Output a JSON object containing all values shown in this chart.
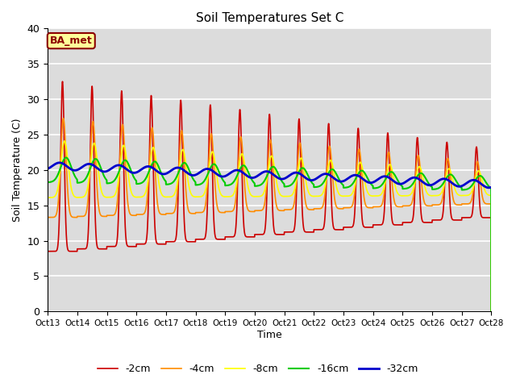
{
  "title": "Soil Temperatures Set C",
  "xlabel": "Time",
  "ylabel": "Soil Temperature (C)",
  "ylim": [
    0,
    40
  ],
  "background_color": "#dcdcdc",
  "figure_color": "#ffffff",
  "annotation_text": "BA_met",
  "annotation_facecolor": "#ffff99",
  "annotation_edgecolor": "#8b0000",
  "annotation_textcolor": "#8b0000",
  "tick_labels": [
    "Oct 13",
    "Oct 14",
    "Oct 15",
    "Oct 16",
    "Oct 17",
    "Oct 18",
    "Oct 19",
    "Oct 20",
    "Oct 21",
    "Oct 22",
    "Oct 23",
    "Oct 24",
    "Oct 25",
    "Oct 26",
    "Oct 27",
    "Oct 28"
  ],
  "yticks": [
    0,
    5,
    10,
    15,
    20,
    25,
    30,
    35,
    40
  ],
  "series_colors": {
    "-2cm": "#cc0000",
    "-4cm": "#ff8c00",
    "-8cm": "#ffff00",
    "-16cm": "#00cc00",
    "-32cm": "#0000cc"
  },
  "series_linewidth": {
    "-2cm": 1.2,
    "-4cm": 1.2,
    "-8cm": 1.2,
    "-16cm": 1.5,
    "-32cm": 2.0
  }
}
